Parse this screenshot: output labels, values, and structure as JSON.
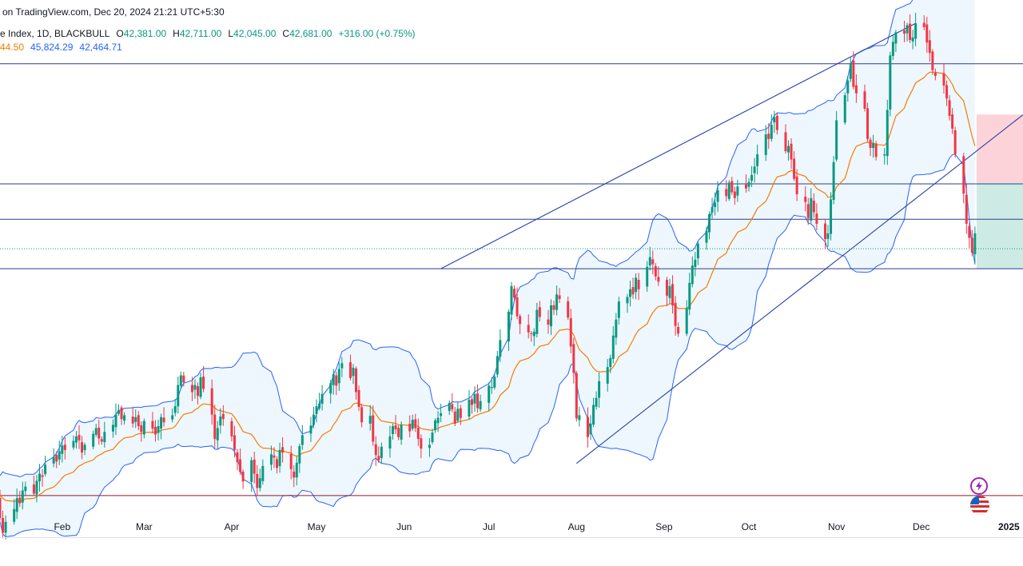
{
  "header": {
    "source_text": "on TradingView.com, Dec 20, 2024 21:21 UTC+5:30",
    "symbol_text": "e Index, 1D, BLACKBULL",
    "ohlc": [
      {
        "key": "O",
        "value": "42,381.00"
      },
      {
        "key": "H",
        "value": "42,711.00"
      },
      {
        "key": "L",
        "value": "42,045.00"
      },
      {
        "key": "C",
        "value": "42,681.00"
      }
    ],
    "change": "+316.00 (+0.75%)",
    "indicator_values": {
      "ema": "44.50",
      "bb_upper": "45,824.29",
      "bb_lower": "42,464.71"
    }
  },
  "colors": {
    "up": "#089981",
    "down": "#f23645",
    "bb_band": "#2962ff",
    "bb_fill": "#e3f2fd",
    "ema": "#f57c00",
    "level_line": "#2a3f8f",
    "support_red": "#8e1b2c",
    "stop_zone": "#fbd3d8",
    "target_zone": "#cdebe4"
  },
  "buttons": {
    "flash_icon": "flash-icon",
    "flag_icon": "us-flag-icon"
  },
  "chart_data": {
    "type": "candlestick",
    "title": "",
    "x_axis": {
      "tick_labels": [
        "Feb",
        "Mar",
        "Apr",
        "May",
        "Jun",
        "Jul",
        "Aug",
        "Sep",
        "Oct",
        "Nov",
        "Dec",
        "2025"
      ],
      "range": [
        "2024-01-10",
        "2025-01-06"
      ]
    },
    "y_axis": {
      "range": [
        38300,
        45950
      ],
      "labels_visible": false
    },
    "last_close": 42681,
    "horizontal_levels": [
      {
        "name": "resistance-1",
        "value": 45320,
        "color": "#2a3f8f"
      },
      {
        "name": "resistance-2",
        "value": 43450,
        "color": "#2a3f8f"
      },
      {
        "name": "support-1",
        "value": 42900,
        "color": "#2a3f8f"
      },
      {
        "name": "support-2",
        "value": 42130,
        "color": "#2a3f8f"
      },
      {
        "name": "support-red",
        "value": 38600,
        "color": "#8e1b2c"
      }
    ],
    "trend_channel": {
      "upper": {
        "from": [
          "2024-06-14",
          42130
        ],
        "to": [
          "2024-11-29",
          45950
        ]
      },
      "lower": {
        "from": [
          "2024-08-01",
          39100
        ],
        "to": [
          "2024-12-31",
          44320
        ]
      }
    },
    "position_zones": {
      "start": "2024-12-20",
      "end": "2025-01-06",
      "stop": [
        43470,
        44530
      ],
      "target": [
        42130,
        43470
      ]
    },
    "closes": [
      38710,
      38820,
      38500,
      38640,
      38400,
      38540,
      38250,
      38020,
      38190,
      38390,
      38560,
      38480,
      38680,
      38740,
      38630,
      38830,
      38940,
      38890,
      39080,
      39200,
      39130,
      39290,
      39380,
      39310,
      39450,
      39520,
      39460,
      39270,
      39390,
      39560,
      39650,
      39490,
      39440,
      39590,
      39700,
      39860,
      39930,
      39790,
      39850,
      39720,
      39820,
      39680,
      39590,
      39760,
      39640,
      39550,
      39680,
      39820,
      39740,
      39850,
      39990,
      40320,
      40470,
      40360,
      40210,
      40320,
      40150,
      40440,
      40260,
      39860,
      39480,
      39650,
      39830,
      39790,
      39520,
      39310,
      39120,
      38970,
      38820,
      39150,
      38940,
      38720,
      38870,
      39060,
      39240,
      39190,
      39030,
      39310,
      39270,
      39010,
      38880,
      39110,
      39370,
      39540,
      39690,
      39860,
      39990,
      40030,
      40180,
      40350,
      40490,
      40310,
      40570,
      40660,
      40430,
      40590,
      40210,
      39980,
      39740,
      39840,
      39440,
      39230,
      39150,
      39360,
      39520,
      39680,
      39630,
      39510,
      39700,
      39600,
      39780,
      39650,
      39480,
      39330,
      39390,
      39580,
      39770,
      39810,
      39880,
      40040,
      39940,
      39720,
      39950,
      39810,
      40090,
      40010,
      40180,
      39960,
      40070,
      40310,
      40290,
      40450,
      40770,
      41020,
      41460,
      41860,
      41680,
      41390,
      41270,
      41140,
      41120,
      41150,
      41490,
      41380,
      41260,
      41560,
      41490,
      41730,
      41660,
      41370,
      40920,
      40510,
      39800,
      39850,
      39510,
      39720,
      40010,
      40120,
      40380,
      40600,
      40740,
      41090,
      41340,
      41620,
      41690,
      41810,
      41730,
      41990,
      41810,
      42160,
      42310,
      42200,
      42010,
      41930,
      41710,
      41860,
      41560,
      41240,
      41120,
      41520,
      41910,
      42180,
      42270,
      42520,
      42720,
      42980,
      43090,
      43160,
      43350,
      43260,
      43470,
      43320,
      43230,
      43410,
      43380,
      43480,
      43590,
      43720,
      43910,
      44220,
      44150,
      44370,
      44490,
      44290,
      43960,
      44040,
      43830,
      43530,
      43290,
      43170,
      42920,
      43230,
      43010,
      42830,
      42590,
      42680,
      43210,
      43790,
      44440,
      44830,
      45060,
      45330,
      44960,
      44860,
      44620,
      44150,
      44010,
      44080,
      43870,
      43910,
      44600,
      45450,
      45660,
      45810,
      45790,
      45920,
      45690,
      45730,
      45950,
      45890,
      45650,
      45490,
      45220,
      45130,
      44980,
      44780,
      44510,
      44310,
      43910,
      43300,
      42830,
      42610,
      42380,
      42681
    ]
  }
}
